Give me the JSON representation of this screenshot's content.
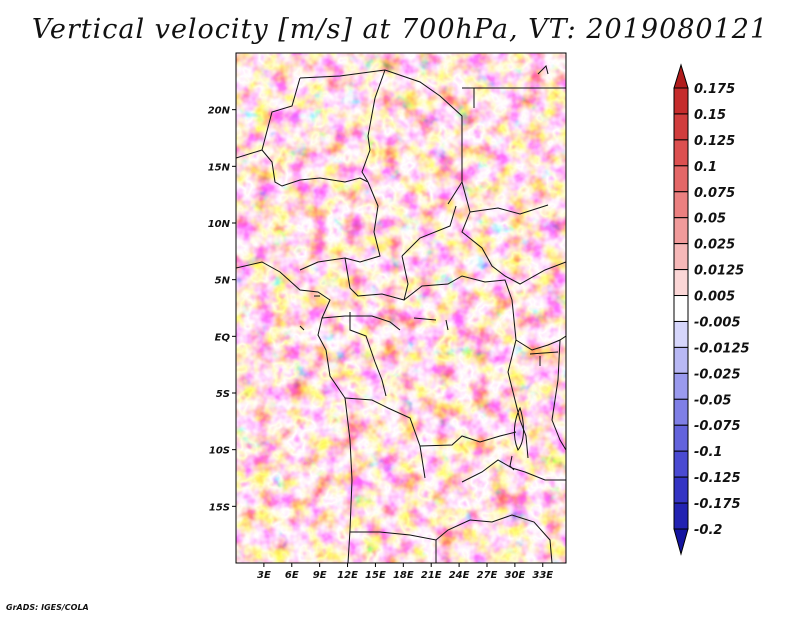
{
  "chart_data": {
    "type": "heatmap",
    "title": "Vertical velocity [m/s] at 700hPa, VT: 2019080121",
    "variable": "Vertical velocity",
    "units": "m/s",
    "level": "700hPa",
    "valid_time": "2019080121",
    "x_axis": {
      "range_deg": [
        0,
        35.5
      ],
      "ticks": [
        {
          "value": 3,
          "label": "3E"
        },
        {
          "value": 6,
          "label": "6E"
        },
        {
          "value": 9,
          "label": "9E"
        },
        {
          "value": 12,
          "label": "12E"
        },
        {
          "value": 15,
          "label": "15E"
        },
        {
          "value": 18,
          "label": "18E"
        },
        {
          "value": 21,
          "label": "21E"
        },
        {
          "value": 24,
          "label": "24E"
        },
        {
          "value": 27,
          "label": "27E"
        },
        {
          "value": 30,
          "label": "30E"
        },
        {
          "value": 33,
          "label": "33E"
        }
      ]
    },
    "y_axis": {
      "range_deg": [
        -20,
        25
      ],
      "ticks": [
        {
          "value": 20,
          "label": "20N"
        },
        {
          "value": 15,
          "label": "15N"
        },
        {
          "value": 10,
          "label": "10N"
        },
        {
          "value": 5,
          "label": "5N"
        },
        {
          "value": 0,
          "label": "EQ"
        },
        {
          "value": -5,
          "label": "5S"
        },
        {
          "value": -10,
          "label": "10S"
        },
        {
          "value": -15,
          "label": "15S"
        }
      ]
    },
    "colorbar": {
      "labels": [
        "0.175",
        "0.15",
        "0.125",
        "0.1",
        "0.075",
        "0.05",
        "0.025",
        "0.0125",
        "0.005",
        "-0.005",
        "-0.0125",
        "-0.025",
        "-0.05",
        "-0.075",
        "-0.1",
        "-0.125",
        "-0.175",
        "-0.2"
      ],
      "colors": [
        "#b01c1c",
        "#c52c2c",
        "#d13d3d",
        "#dc5050",
        "#e46767",
        "#eb8080",
        "#f19b9b",
        "#f6b8b8",
        "#fbd6d6",
        "#ffffff",
        "#d6d6fb",
        "#b8b8f4",
        "#9a9aee",
        "#7f7fe6",
        "#6363dc",
        "#4a4ad2",
        "#3434c4",
        "#2222b2",
        "#1414a0"
      ]
    }
  },
  "footer": "GrADS: IGES/COLA"
}
